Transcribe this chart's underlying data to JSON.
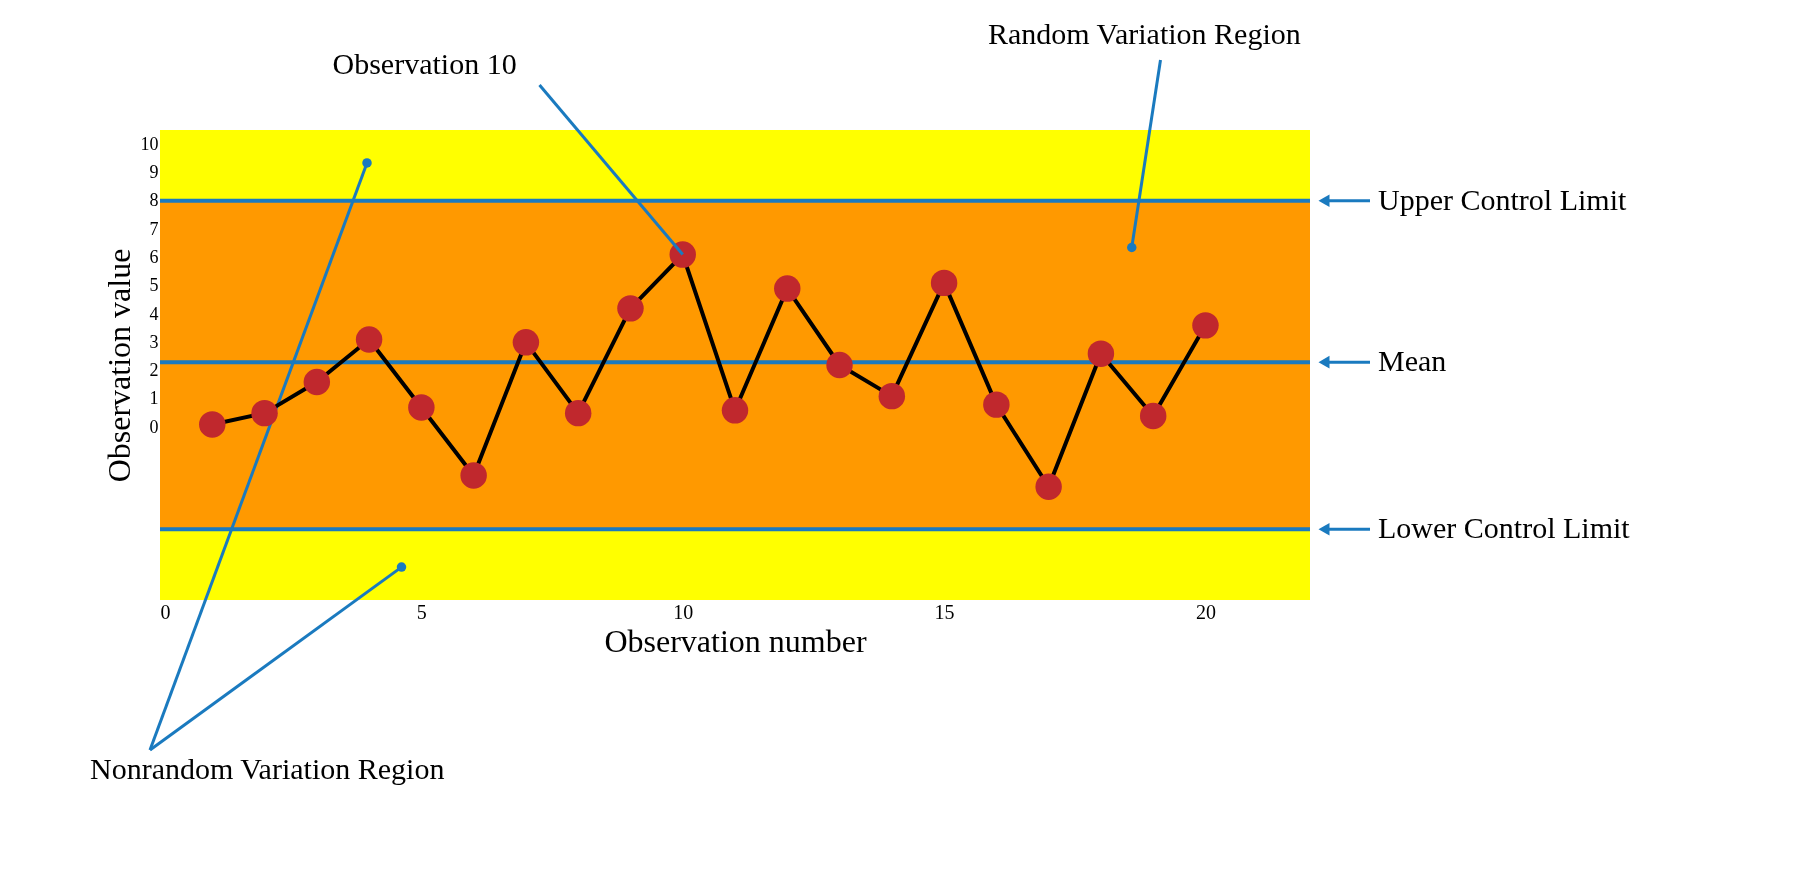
{
  "chart_data": {
    "type": "line",
    "xlabel": "Observation number",
    "ylabel": "Observation value",
    "x": [
      1,
      2,
      3,
      4,
      5,
      6,
      7,
      8,
      9,
      10,
      11,
      12,
      13,
      14,
      15,
      16,
      17,
      18,
      19,
      20
    ],
    "series": [
      {
        "color": "#c0282d",
        "values": [
          0.1,
          0.5,
          1.6,
          3.1,
          0.7,
          -1.7,
          3.0,
          0.5,
          4.2,
          6.1,
          0.6,
          4.9,
          2.2,
          1.1,
          5.1,
          0.8,
          -2.1,
          2.6,
          0.4,
          3.6
        ]
      }
    ],
    "marker": "circle",
    "line_style": "solid",
    "grid": false,
    "xlim": [
      0,
      22
    ],
    "xticks": [
      0,
      5,
      10,
      15,
      20
    ],
    "ylim": [
      -6.1,
      10.5
    ],
    "yticks": [
      0,
      1,
      2,
      3,
      4,
      5,
      6,
      7,
      8,
      9,
      10
    ],
    "bands": [
      {
        "axis": "y",
        "from": -6.1,
        "to": 10.5,
        "label": "Nonrandom Variation Region",
        "color": "#ffff00"
      },
      {
        "axis": "y",
        "from": -3.6,
        "to": 8.0,
        "label": "Random Variation Region",
        "color": "#ff9900"
      }
    ],
    "ref_lines": [
      {
        "axis": "y",
        "value": 8.0,
        "label": "Upper Control Limit",
        "color": "#1a7abf",
        "line_style": "solid"
      },
      {
        "axis": "y",
        "value": 2.3,
        "label": "Mean",
        "color": "#1a7abf",
        "line_style": "solid"
      },
      {
        "axis": "y",
        "value": -3.6,
        "label": "Lower Control Limit",
        "color": "#1a7abf",
        "line_style": "solid"
      }
    ],
    "annotations": [
      {
        "text": "Observation 10",
        "x": 10,
        "y": 6.1
      }
    ]
  }
}
